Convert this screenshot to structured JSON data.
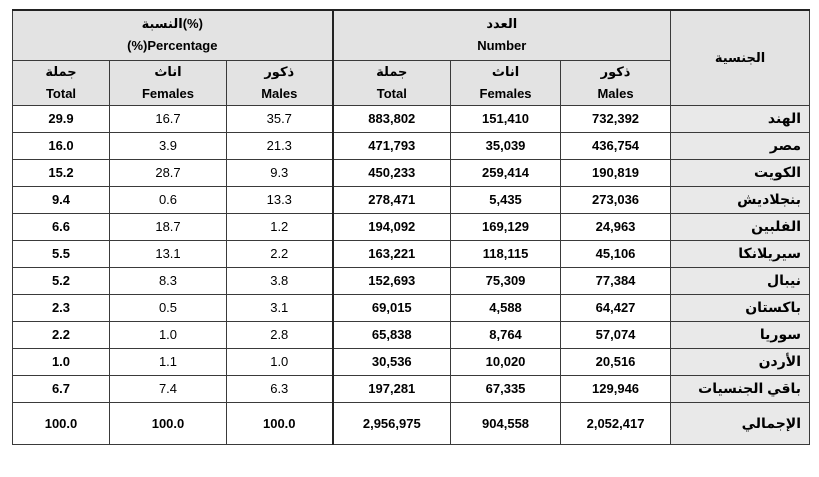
{
  "headers": {
    "percentage_ar": "النسبة(%)",
    "percentage_en": "(%)Percentage",
    "number_ar": "العدد",
    "number_en": "Number",
    "nationality_ar": "الجنسية",
    "total_ar": "جملة",
    "total_en": "Total",
    "females_ar": "اناث",
    "females_en": "Females",
    "males_ar": "ذكور",
    "males_en": "Males"
  },
  "rows": [
    {
      "nat": "الهند",
      "pt": "29.9",
      "pf": "16.7",
      "pm": "35.7",
      "nt": "883,802",
      "nf": "151,410",
      "nm": "732,392"
    },
    {
      "nat": "مصر",
      "pt": "16.0",
      "pf": "3.9",
      "pm": "21.3",
      "nt": "471,793",
      "nf": "35,039",
      "nm": "436,754"
    },
    {
      "nat": "الكويت",
      "pt": "15.2",
      "pf": "28.7",
      "pm": "9.3",
      "nt": "450,233",
      "nf": "259,414",
      "nm": "190,819"
    },
    {
      "nat": "بنجلاديش",
      "pt": "9.4",
      "pf": "0.6",
      "pm": "13.3",
      "nt": "278,471",
      "nf": "5,435",
      "nm": "273,036"
    },
    {
      "nat": "الفلبين",
      "pt": "6.6",
      "pf": "18.7",
      "pm": "1.2",
      "nt": "194,092",
      "nf": "169,129",
      "nm": "24,963"
    },
    {
      "nat": "سيريلانكا",
      "pt": "5.5",
      "pf": "13.1",
      "pm": "2.2",
      "nt": "163,221",
      "nf": "118,115",
      "nm": "45,106"
    },
    {
      "nat": "نيبال",
      "pt": "5.2",
      "pf": "8.3",
      "pm": "3.8",
      "nt": "152,693",
      "nf": "75,309",
      "nm": "77,384"
    },
    {
      "nat": "باكستان",
      "pt": "2.3",
      "pf": "0.5",
      "pm": "3.1",
      "nt": "69,015",
      "nf": "4,588",
      "nm": "64,427"
    },
    {
      "nat": "سوريا",
      "pt": "2.2",
      "pf": "1.0",
      "pm": "2.8",
      "nt": "65,838",
      "nf": "8,764",
      "nm": "57,074"
    },
    {
      "nat": "الأردن",
      "pt": "1.0",
      "pf": "1.1",
      "pm": "1.0",
      "nt": "30,536",
      "nf": "10,020",
      "nm": "20,516"
    },
    {
      "nat": "باقي الجنسيات",
      "pt": "6.7",
      "pf": "7.4",
      "pm": "6.3",
      "nt": "197,281",
      "nf": "67,335",
      "nm": "129,946"
    }
  ],
  "total_row": {
    "nat": "الإجمالي",
    "pt": "100.0",
    "pf": "100.0",
    "pm": "100.0",
    "nt": "2,956,975",
    "nf": "904,558",
    "nm": "2,052,417"
  },
  "colors": {
    "header_text": "#c00000",
    "header_bg": "#e3e3e3",
    "border": "#3a3a3a"
  }
}
